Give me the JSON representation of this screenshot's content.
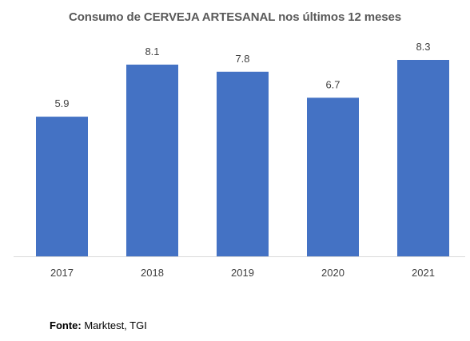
{
  "chart_data": {
    "type": "bar",
    "title": "Consumo de CERVEJA ARTESANAL nos últimos 12 meses",
    "categories": [
      "2017",
      "2018",
      "2019",
      "2020",
      "2021"
    ],
    "values": [
      5.9,
      8.1,
      7.8,
      6.7,
      8.3
    ],
    "value_labels": [
      "5.9",
      "8.1",
      "7.8",
      "6.7",
      "8.3"
    ],
    "xlabel": "",
    "ylabel": "",
    "ylim": [
      0,
      8.3
    ],
    "grid": false,
    "legend": "none",
    "bar_color": "#4472C4"
  },
  "source": {
    "label": "Fonte:",
    "text": "Marktest, TGI"
  }
}
